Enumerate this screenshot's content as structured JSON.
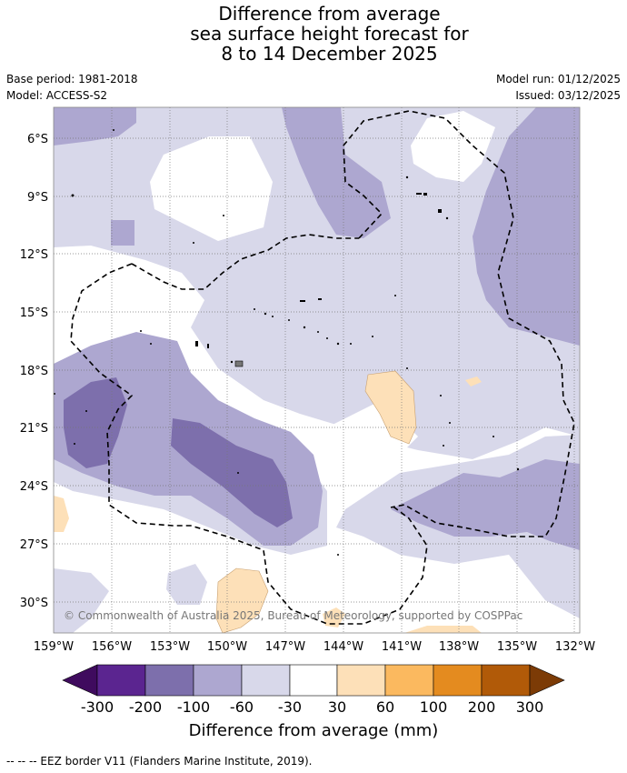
{
  "title": {
    "line1": "Difference from average",
    "line2": "sea surface height forecast for",
    "line3": "8 to 14 December 2025"
  },
  "meta": {
    "base_period": "Base period: 1981-2018",
    "model": "Model: ACCESS-S2",
    "model_run": "Model run: 01/12/2025",
    "issued": "Issued: 03/12/2025"
  },
  "map": {
    "lat_labels": [
      "6°S",
      "9°S",
      "12°S",
      "15°S",
      "18°S",
      "21°S",
      "24°S",
      "27°S",
      "30°S"
    ],
    "lon_labels": [
      "159°W",
      "156°W",
      "153°W",
      "150°W",
      "147°W",
      "144°W",
      "141°W",
      "138°W",
      "135°W",
      "132°W"
    ],
    "copyright": "© Commonwealth of Australia 2025, Bureau of Meteorology, supported by COSPPac"
  },
  "colorbar": {
    "title": "Difference from average (mm)",
    "tick_labels": [
      "-300",
      "-200",
      "-100",
      "-60",
      "-30",
      "30",
      "60",
      "100",
      "200",
      "300"
    ],
    "colors": [
      "#3f0b5e",
      "#5b2590",
      "#7d6fac",
      "#ada7d0",
      "#d8d8ea",
      "#ffffff",
      "#fde0b8",
      "#fbb95f",
      "#e48b1f",
      "#b15a08",
      "#7c3b06"
    ]
  },
  "legend_text": "--  --  -- EEZ border V11 (Flanders Marine Institute, 2019)."
}
